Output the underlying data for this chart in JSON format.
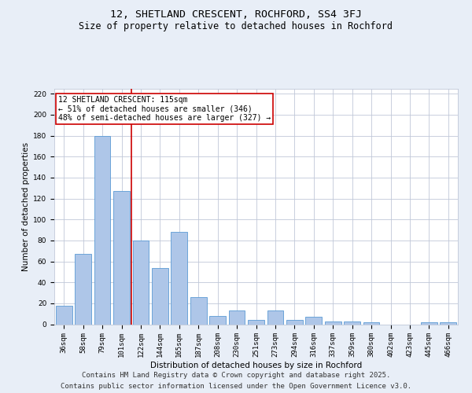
{
  "title": "12, SHETLAND CRESCENT, ROCHFORD, SS4 3FJ",
  "subtitle": "Size of property relative to detached houses in Rochford",
  "xlabel": "Distribution of detached houses by size in Rochford",
  "ylabel": "Number of detached properties",
  "categories": [
    "36sqm",
    "58sqm",
    "79sqm",
    "101sqm",
    "122sqm",
    "144sqm",
    "165sqm",
    "187sqm",
    "208sqm",
    "230sqm",
    "251sqm",
    "273sqm",
    "294sqm",
    "316sqm",
    "337sqm",
    "359sqm",
    "380sqm",
    "402sqm",
    "423sqm",
    "445sqm",
    "466sqm"
  ],
  "values": [
    18,
    67,
    180,
    127,
    80,
    54,
    88,
    26,
    8,
    13,
    4,
    13,
    4,
    7,
    3,
    3,
    2,
    0,
    0,
    2,
    2
  ],
  "bar_color": "#aec6e8",
  "bar_edge_color": "#5b9bd5",
  "background_color": "#e8eef7",
  "plot_bg_color": "#ffffff",
  "grid_color": "#c0c8d8",
  "vline_x_index": 3.5,
  "vline_color": "#cc0000",
  "annotation_line1": "12 SHETLAND CRESCENT: 115sqm",
  "annotation_line2": "← 51% of detached houses are smaller (346)",
  "annotation_line3": "48% of semi-detached houses are larger (327) →",
  "annotation_box_color": "#ffffff",
  "annotation_box_edge_color": "#cc0000",
  "ylim": [
    0,
    225
  ],
  "yticks": [
    0,
    20,
    40,
    60,
    80,
    100,
    120,
    140,
    160,
    180,
    200,
    220
  ],
  "footer_line1": "Contains HM Land Registry data © Crown copyright and database right 2025.",
  "footer_line2": "Contains public sector information licensed under the Open Government Licence v3.0.",
  "title_fontsize": 9.5,
  "subtitle_fontsize": 8.5,
  "annotation_fontsize": 7.0,
  "footer_fontsize": 6.5,
  "axis_label_fontsize": 7.5,
  "tick_fontsize": 6.5,
  "bar_width": 0.85
}
